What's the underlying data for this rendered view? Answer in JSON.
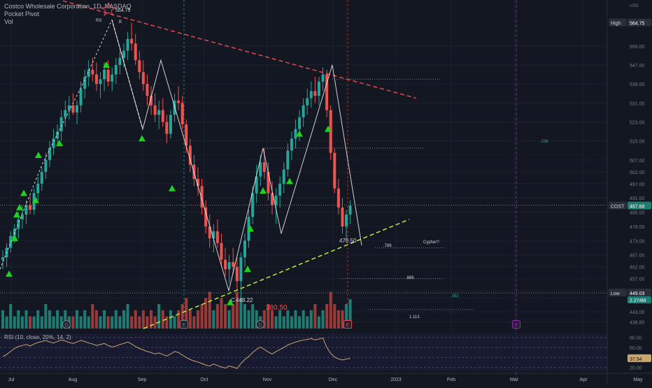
{
  "legend": {
    "symbol": "Costco Wholesale Corporation, 1D, NASDAQ",
    "indicator1": "Pocket Pivot",
    "indicator2": "Vol"
  },
  "colors": {
    "background": "#131722",
    "up": "#26a69a",
    "down": "#ef5350",
    "up_vol": "#1e7d73",
    "down_vol": "#9b3a38",
    "pivot": "#22d11e",
    "wave": "#ffffff",
    "resistance": "#e8484b",
    "support": "#b5f23a",
    "rsi": "#c9a66b",
    "event_marker": "#9c27b0"
  },
  "chart_data": [
    {
      "type": "candlestick",
      "x_axis": [
        "Jul",
        "Aug",
        "Sep",
        "Oct",
        "Nov",
        "Dec",
        "2023",
        "Feb",
        "Mar",
        "Apr",
        "May"
      ],
      "y_axis_unit": "USD",
      "y_ticks": [
        438.8,
        443.0,
        449.0,
        452.0,
        457.0,
        462.0,
        467.0,
        473.0,
        479.0,
        485.0,
        491.0,
        497.0,
        502.0,
        507.0,
        515.0,
        523.0,
        531.0,
        539.0,
        547.0,
        555.0
      ],
      "ylim": [
        436,
        572
      ],
      "high_label": "High",
      "high_value": "564.75",
      "low_label": "Low",
      "low_value": "449.03",
      "last_label": "COST",
      "last_value": "487.68",
      "volume_value": "2.274M",
      "current_price": 487.68,
      "candles_ohlc": [
        [
          465,
          469,
          461,
          466
        ],
        [
          466,
          472,
          462,
          470
        ],
        [
          470,
          477,
          468,
          475
        ],
        [
          475,
          480,
          472,
          478
        ],
        [
          478,
          485,
          474,
          482
        ],
        [
          482,
          488,
          478,
          484
        ],
        [
          484,
          490,
          480,
          488
        ],
        [
          488,
          492,
          484,
          486
        ],
        [
          486,
          495,
          484,
          493
        ],
        [
          493,
          500,
          490,
          497
        ],
        [
          497,
          504,
          494,
          502
        ],
        [
          502,
          510,
          499,
          507
        ],
        [
          507,
          515,
          504,
          512
        ],
        [
          512,
          520,
          509,
          516
        ],
        [
          516,
          522,
          513,
          519
        ],
        [
          519,
          528,
          515,
          525
        ],
        [
          525,
          532,
          521,
          528
        ],
        [
          528,
          534,
          524,
          530
        ],
        [
          530,
          535,
          526,
          527
        ],
        [
          527,
          532,
          522,
          530
        ],
        [
          530,
          540,
          527,
          537
        ],
        [
          537,
          545,
          533,
          542
        ],
        [
          542,
          549,
          538,
          545
        ],
        [
          545,
          550,
          540,
          543
        ],
        [
          543,
          548,
          536,
          539
        ],
        [
          539,
          544,
          533,
          541
        ],
        [
          541,
          548,
          536,
          545
        ],
        [
          545,
          549,
          538,
          540
        ],
        [
          540,
          546,
          536,
          543
        ],
        [
          543,
          550,
          539,
          547
        ],
        [
          547,
          553,
          543,
          550
        ],
        [
          550,
          556,
          546,
          553
        ],
        [
          553,
          561,
          549,
          558
        ],
        [
          558,
          564.75,
          553,
          556
        ],
        [
          556,
          560,
          547,
          549
        ],
        [
          549,
          553,
          541,
          544
        ],
        [
          544,
          549,
          536,
          539
        ],
        [
          539,
          543,
          530,
          534
        ],
        [
          534,
          538,
          526,
          530
        ],
        [
          530,
          535,
          523,
          526
        ],
        [
          526,
          532,
          520,
          528
        ],
        [
          528,
          533,
          521,
          523
        ],
        [
          523,
          526,
          514,
          518
        ],
        [
          518,
          528,
          516,
          526
        ],
        [
          526,
          535,
          523,
          532
        ],
        [
          532,
          538,
          528,
          531
        ],
        [
          531,
          534,
          520,
          522
        ],
        [
          522,
          524,
          510,
          513
        ],
        [
          513,
          516,
          502,
          505
        ],
        [
          505,
          509,
          496,
          499
        ],
        [
          499,
          504,
          492,
          496
        ],
        [
          496,
          499,
          484,
          487
        ],
        [
          487,
          490,
          476,
          479
        ],
        [
          479,
          484,
          470,
          474
        ],
        [
          474,
          480,
          468,
          477
        ],
        [
          477,
          482,
          470,
          472
        ],
        [
          472,
          476,
          462,
          465
        ],
        [
          465,
          470,
          458,
          461
        ],
        [
          461,
          467,
          455,
          464
        ],
        [
          464,
          470,
          459,
          462
        ],
        [
          462,
          466,
          452,
          456
        ],
        [
          456,
          468,
          449.03,
          466
        ],
        [
          466,
          476,
          462,
          473
        ],
        [
          473,
          486,
          470,
          483
        ],
        [
          483,
          496,
          480,
          493
        ],
        [
          493,
          505,
          489,
          500
        ],
        [
          500,
          509,
          496,
          506
        ],
        [
          506,
          512,
          499,
          502
        ],
        [
          502,
          506,
          490,
          493
        ],
        [
          493,
          498,
          484,
          488
        ],
        [
          488,
          495,
          480,
          492
        ],
        [
          492,
          500,
          487,
          497
        ],
        [
          497,
          506,
          493,
          503
        ],
        [
          503,
          514,
          500,
          511
        ],
        [
          511,
          519,
          507,
          516
        ],
        [
          516,
          524,
          512,
          520
        ],
        [
          520,
          528,
          515,
          525
        ],
        [
          525,
          533,
          521,
          530
        ],
        [
          530,
          537,
          526,
          533
        ],
        [
          533,
          540,
          529,
          536
        ],
        [
          536,
          542,
          531,
          534
        ],
        [
          534,
          542,
          530,
          540
        ],
        [
          540,
          546,
          536,
          543
        ],
        [
          543,
          545,
          525,
          528
        ],
        [
          528,
          530,
          507,
          510
        ],
        [
          510,
          512,
          493,
          495
        ],
        [
          495,
          499,
          484,
          487
        ],
        [
          487,
          491,
          476,
          479
        ],
        [
          479,
          486,
          473,
          484
        ],
        [
          484,
          490,
          480,
          487.68
        ]
      ],
      "volume": [
        3,
        2,
        4,
        2,
        3,
        2,
        3,
        2,
        2,
        3,
        2,
        4,
        3,
        2,
        3,
        2,
        3,
        2,
        2,
        3,
        2,
        3,
        2,
        4,
        3,
        2,
        3,
        2,
        2,
        3,
        2,
        3,
        4,
        2,
        3,
        2,
        3,
        2,
        3,
        2,
        4,
        3,
        2,
        3,
        2,
        3,
        4,
        5,
        3,
        2,
        3,
        4,
        5,
        6,
        3,
        4,
        5,
        4,
        3,
        4,
        6,
        5,
        4,
        3,
        4,
        3,
        2,
        3,
        4,
        3,
        2,
        3,
        2,
        3,
        2,
        3,
        2,
        3,
        2,
        3,
        4,
        2,
        3,
        4,
        6,
        4,
        3,
        3,
        4,
        4.8
      ],
      "volume_label": "380.50"
    },
    {
      "type": "line",
      "title": "RSI (10, close, 20%, 14, 2)",
      "y_ticks": [
        20.0,
        40.0,
        60.0,
        80.0
      ],
      "ylim": [
        14,
        88
      ],
      "last_value": "37.94",
      "values": [
        42,
        46,
        52,
        58,
        62,
        64,
        66,
        63,
        67,
        70,
        72,
        74,
        71,
        69,
        72,
        75,
        73,
        70,
        68,
        71,
        74,
        72,
        69,
        67,
        64,
        66,
        68,
        64,
        61,
        63,
        66,
        68,
        71,
        67,
        62,
        58,
        55,
        52,
        50,
        47,
        49,
        46,
        43,
        47,
        52,
        50,
        45,
        40,
        36,
        33,
        31,
        28,
        25,
        23,
        27,
        24,
        21,
        19,
        23,
        21,
        18,
        28,
        36,
        42,
        50,
        56,
        61,
        56,
        51,
        47,
        52,
        56,
        60,
        65,
        68,
        71,
        73,
        75,
        76,
        78,
        75,
        77,
        79,
        60,
        48,
        41,
        37,
        35,
        37,
        37.94
      ]
    }
  ],
  "annotations": {
    "labels_rs": "RS",
    "labels_b": "B",
    "labels_c": "C",
    "c_value": "448.22",
    "swing_value": "470.50",
    "fib_236": ".236",
    "fib_382": ".382",
    "fib_786": ".786",
    "fib_886": ".886",
    "fib_1113": "1.113",
    "pattern_label": "Cypher?",
    "earnings_flag": "E",
    "dividend_flag": "D",
    "top_value": "564.75"
  }
}
